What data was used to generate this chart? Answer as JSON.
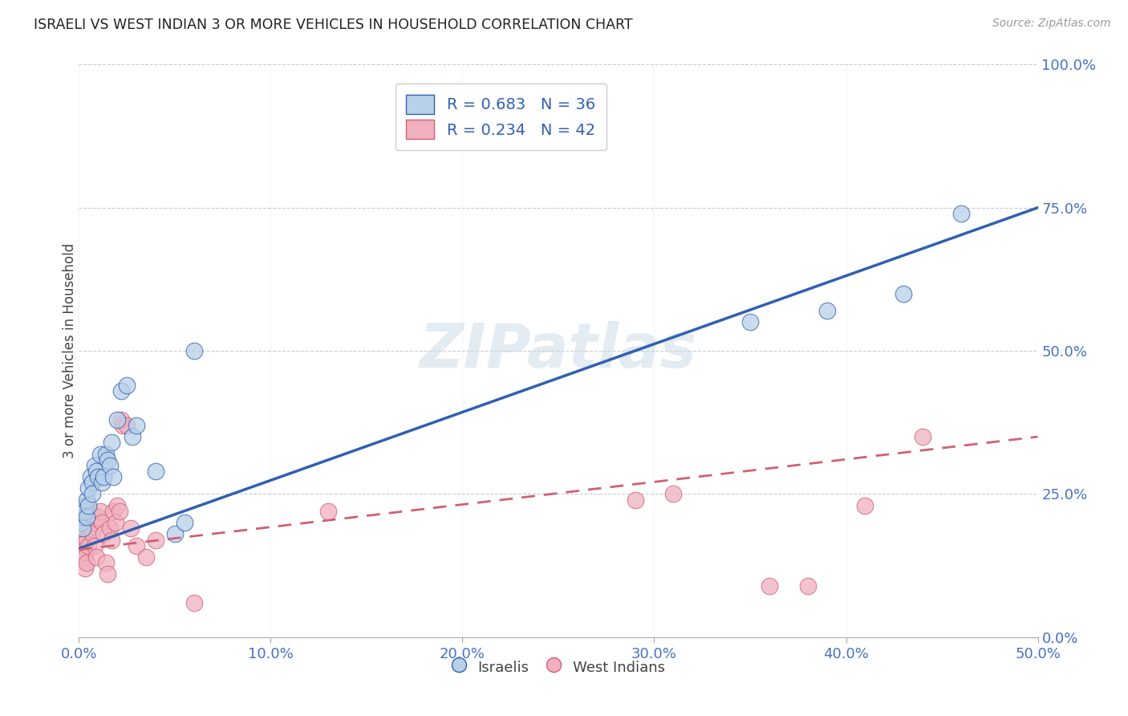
{
  "title": "ISRAELI VS WEST INDIAN 3 OR MORE VEHICLES IN HOUSEHOLD CORRELATION CHART",
  "source": "Source: ZipAtlas.com",
  "ylabel_label": "3 or more Vehicles in Household",
  "watermark": "ZIPatlas",
  "legend_line1": "R = 0.683   N = 36",
  "legend_line2": "R = 0.234   N = 42",
  "blue_scatter_color": "#b8d0e8",
  "pink_scatter_color": "#f0b0c0",
  "blue_line_color": "#3060b0",
  "pink_line_color": "#d06070",
  "title_color": "#222222",
  "tick_color": "#4472c4",
  "israelis_scatter_x": [
    0.001,
    0.002,
    0.002,
    0.003,
    0.003,
    0.004,
    0.004,
    0.005,
    0.005,
    0.006,
    0.007,
    0.007,
    0.008,
    0.009,
    0.01,
    0.011,
    0.012,
    0.013,
    0.014,
    0.015,
    0.016,
    0.017,
    0.018,
    0.02,
    0.022,
    0.025,
    0.028,
    0.03,
    0.04,
    0.05,
    0.055,
    0.06,
    0.35,
    0.39,
    0.43,
    0.46
  ],
  "israelis_scatter_y": [
    0.2,
    0.21,
    0.19,
    0.23,
    0.22,
    0.24,
    0.21,
    0.26,
    0.23,
    0.28,
    0.27,
    0.25,
    0.3,
    0.29,
    0.28,
    0.32,
    0.27,
    0.28,
    0.32,
    0.31,
    0.3,
    0.34,
    0.28,
    0.38,
    0.43,
    0.44,
    0.35,
    0.37,
    0.29,
    0.18,
    0.2,
    0.5,
    0.55,
    0.57,
    0.6,
    0.74
  ],
  "westindian_scatter_x": [
    0.001,
    0.001,
    0.002,
    0.002,
    0.003,
    0.003,
    0.004,
    0.004,
    0.005,
    0.005,
    0.006,
    0.007,
    0.007,
    0.008,
    0.009,
    0.01,
    0.011,
    0.012,
    0.013,
    0.014,
    0.015,
    0.016,
    0.017,
    0.018,
    0.019,
    0.02,
    0.021,
    0.022,
    0.023,
    0.025,
    0.027,
    0.03,
    0.035,
    0.04,
    0.06,
    0.13,
    0.29,
    0.31,
    0.36,
    0.38,
    0.41,
    0.44
  ],
  "westindian_scatter_y": [
    0.19,
    0.16,
    0.18,
    0.15,
    0.14,
    0.12,
    0.17,
    0.13,
    0.16,
    0.19,
    0.22,
    0.2,
    0.18,
    0.16,
    0.14,
    0.21,
    0.22,
    0.2,
    0.18,
    0.13,
    0.11,
    0.19,
    0.17,
    0.22,
    0.2,
    0.23,
    0.22,
    0.38,
    0.37,
    0.37,
    0.19,
    0.16,
    0.14,
    0.17,
    0.06,
    0.22,
    0.24,
    0.25,
    0.09,
    0.09,
    0.23,
    0.35
  ],
  "blue_line_x0": 0.0,
  "blue_line_x1": 0.5,
  "blue_line_y0": 0.155,
  "blue_line_y1": 0.75,
  "pink_line_x0": 0.0,
  "pink_line_x1": 0.5,
  "pink_line_y0": 0.153,
  "pink_line_y1": 0.35,
  "xmin": 0.0,
  "xmax": 0.5,
  "ymin": 0.0,
  "ymax": 1.0,
  "xtick_vals": [
    0.0,
    0.1,
    0.2,
    0.3,
    0.4,
    0.5
  ],
  "ytick_vals": [
    0.0,
    0.25,
    0.5,
    0.75,
    1.0
  ]
}
